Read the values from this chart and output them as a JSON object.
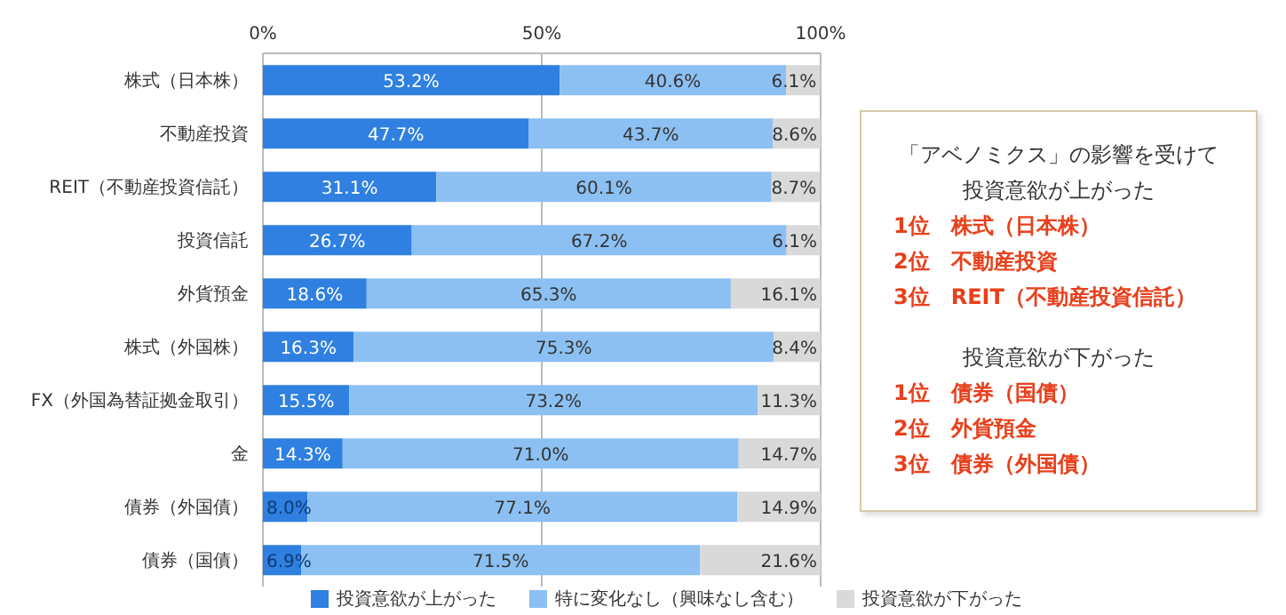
{
  "chart_data": {
    "type": "bar",
    "orientation": "horizontal",
    "stacked": true,
    "grid": "x",
    "legend": "bottom",
    "categories": [
      "株式（日本株）",
      "不動産投資",
      "REIT（不動産投資信託）",
      "投資信託",
      "外貨預金",
      "株式（外国株）",
      "FX（外国為替証拠金取引）",
      "金",
      "債券（外国債）",
      "債券（国債）"
    ],
    "series": [
      {
        "name": "投資意欲が上がった",
        "color": "#2f80e0",
        "values": [
          53.2,
          47.7,
          31.1,
          26.7,
          18.6,
          16.3,
          15.5,
          14.3,
          8.0,
          6.9
        ]
      },
      {
        "name": "特に変化なし（興味なし含む）",
        "color": "#8cc0f2",
        "values": [
          40.6,
          43.7,
          60.1,
          67.2,
          65.3,
          75.3,
          73.2,
          71.0,
          77.1,
          71.5
        ]
      },
      {
        "name": "投資意欲が下がった",
        "color": "#d9d9d9",
        "values": [
          6.1,
          8.6,
          8.7,
          6.1,
          16.1,
          8.4,
          11.3,
          14.7,
          14.9,
          21.6
        ]
      }
    ],
    "value_labels": [
      [
        "53.2%",
        "47.7%",
        "31.1%",
        "26.7%",
        "18.6%",
        "16.3%",
        "15.5%",
        "14.3%",
        "8.0%",
        "6.9%"
      ],
      [
        "40.6%",
        "43.7%",
        "60.1%",
        "67.2%",
        "65.3%",
        "75.3%",
        "73.2%",
        "71.0%",
        "77.1%",
        "71.5%"
      ],
      [
        "6.1%",
        "8.6%",
        "8.7%",
        "6.1%",
        "16.1%",
        "8.4%",
        "11.3%",
        "14.7%",
        "14.9%",
        "21.6%"
      ]
    ],
    "xlim": [
      0,
      100
    ],
    "xticks": [
      {
        "value": 0,
        "label": "0%"
      },
      {
        "value": 50,
        "label": "50%"
      },
      {
        "value": 100,
        "label": "100%"
      }
    ],
    "annotations": [
      "「アベノミクス」の影響を受けて",
      "投資意欲が上がった",
      "1位　株式（日本株）",
      "2位　不動産投資",
      "3位　REIT（不動産投資信託）",
      "投資意欲が下がった",
      "1位　債券（国債）",
      "2位　外貨預金",
      "3位　債券（外国債）"
    ]
  }
}
